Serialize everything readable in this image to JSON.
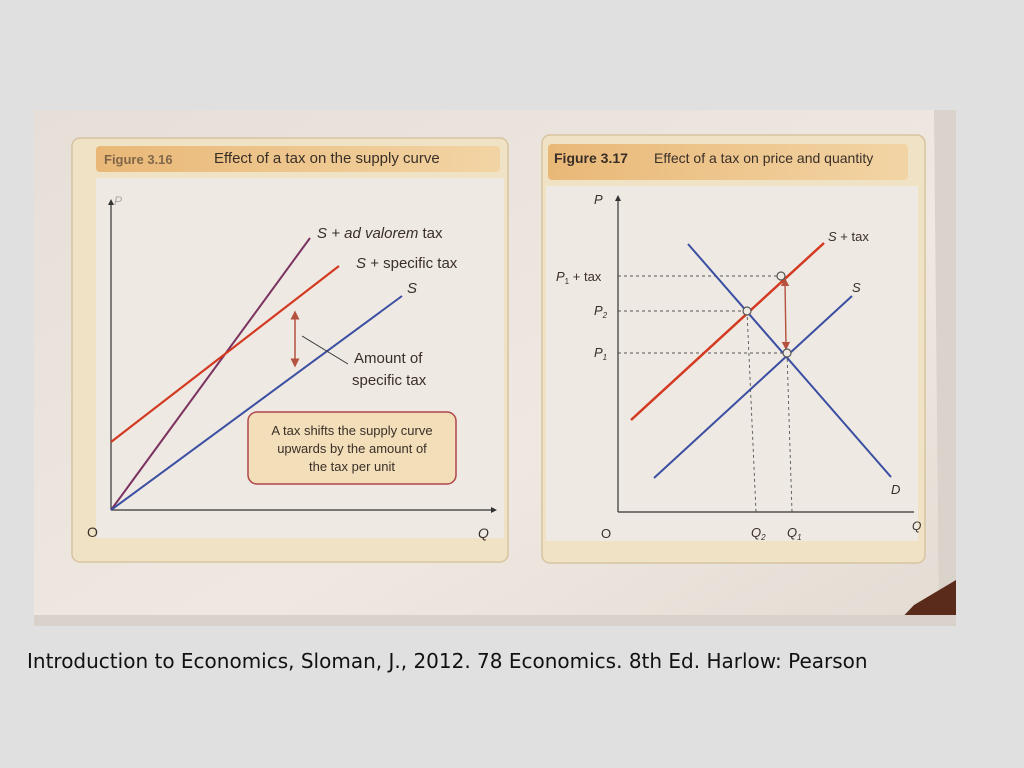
{
  "colors": {
    "page_background": "#e0e0e0",
    "paper": "#ece5df",
    "figure_panel": "#f0e2c4",
    "header_band": "#ecc48a",
    "tax_curve_red": "#d23a22",
    "supply_curve_blue": "#3b4fa2",
    "ad_valorem_curve_purple": "#7a3260",
    "textbox_border": "#b0464b"
  },
  "figure_3_16": {
    "number": "Figure 3.16",
    "title": "Effect of a tax on the supply curve",
    "axis_y": "P",
    "axis_x": "Q",
    "origin": "O",
    "curve_ad_valorem_S": "S",
    "curve_ad_valorem_rest": "+ ad valorem",
    "curve_ad_valorem_tax": "tax",
    "curve_specific_S": "S",
    "curve_specific_rest": "+ specific tax",
    "curve_supply": "S",
    "annotation_line1": "Amount of",
    "annotation_line2": "specific tax",
    "note_line1": "A tax shifts the supply curve",
    "note_line2": "upwards by the amount of",
    "note_line3": "the tax per unit"
  },
  "figure_3_17": {
    "number": "Figure 3.17",
    "title": "Effect of a tax on price and quantity",
    "axis_y": "P",
    "axis_x": "Q",
    "origin": "O",
    "curve_tax_S": "S",
    "curve_tax_rest": "+ tax",
    "curve_supply": "S",
    "curve_demand": "D",
    "price_tax_P": "P",
    "price_tax_sub": "1",
    "price_tax_rest": "+ tax",
    "price_2_P": "P",
    "price_2_sub": "2",
    "price_1_P": "P",
    "price_1_sub": "1",
    "qty_2_Q": "Q",
    "qty_2_sub": "2",
    "qty_1_Q": "Q",
    "qty_1_sub": "1"
  },
  "caption": "Introduction to Economics, Sloman, J., 2012. 78 Economics. 8th Ed. Harlow: Pearson"
}
